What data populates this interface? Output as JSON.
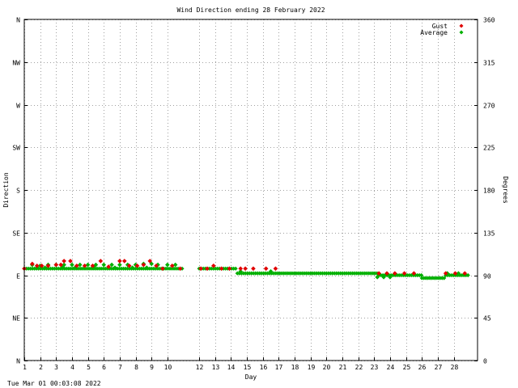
{
  "chart_data": {
    "type": "scatter",
    "title": "Wind Direction ending 28 February 2022",
    "xlabel": "Day",
    "ylabel_left": "Direction",
    "ylabel_right": "Degrees",
    "footer": "Tue Mar 01 00:03:08 2022",
    "x_ticks": [
      "1",
      "2",
      "3",
      "4",
      "5",
      "6",
      "7",
      "8",
      "9",
      "10",
      "12",
      "13",
      "14",
      "15",
      "16",
      "17",
      "18",
      "19",
      "20",
      "21",
      "22",
      "23",
      "24",
      "25",
      "26",
      "27",
      "28"
    ],
    "y_ticks_left": [
      "N",
      "NE",
      "E",
      "SE",
      "S",
      "SW",
      "W",
      "NW",
      "N"
    ],
    "y_ticks_right": [
      "0",
      "45",
      "90",
      "135",
      "180",
      "225",
      "270",
      "315",
      "360"
    ],
    "xlim": [
      1,
      29.5
    ],
    "ylim": [
      0,
      360
    ],
    "grid": true,
    "legend_position": "top-right",
    "series": [
      {
        "name": "Gust",
        "color": "#e00000",
        "points": [
          [
            1.0,
            97
          ],
          [
            1.5,
            102
          ],
          [
            1.8,
            100
          ],
          [
            2.1,
            100
          ],
          [
            2.5,
            100
          ],
          [
            3.0,
            101
          ],
          [
            3.3,
            101
          ],
          [
            3.5,
            105
          ],
          [
            3.9,
            105
          ],
          [
            4.3,
            100
          ],
          [
            4.8,
            100
          ],
          [
            5.3,
            100
          ],
          [
            5.8,
            105
          ],
          [
            6.3,
            99
          ],
          [
            7.0,
            105
          ],
          [
            7.3,
            105
          ],
          [
            7.6,
            100
          ],
          [
            8.1,
            100
          ],
          [
            8.5,
            101
          ],
          [
            8.9,
            105
          ],
          [
            9.3,
            100
          ],
          [
            9.7,
            97
          ],
          [
            10.3,
            100
          ],
          [
            10.8,
            97
          ],
          [
            12.1,
            97
          ],
          [
            12.5,
            97
          ],
          [
            12.9,
            100
          ],
          [
            13.4,
            97
          ],
          [
            13.9,
            97
          ],
          [
            14.6,
            97
          ],
          [
            14.9,
            97
          ],
          [
            15.4,
            97
          ],
          [
            16.2,
            97
          ],
          [
            16.8,
            97
          ],
          [
            23.3,
            92
          ],
          [
            23.8,
            92
          ],
          [
            24.3,
            92
          ],
          [
            24.9,
            92
          ],
          [
            25.5,
            92
          ],
          [
            27.5,
            92
          ],
          [
            28.1,
            92
          ],
          [
            28.7,
            92
          ]
        ]
      },
      {
        "name": "Average",
        "color": "#00b000",
        "segments": [
          {
            "x_start": 1.0,
            "x_end": 11.0,
            "y": 97
          },
          {
            "x_start": 12.0,
            "x_end": 14.4,
            "y": 97
          },
          {
            "x_start": 14.4,
            "x_end": 23.3,
            "y": 92
          },
          {
            "x_start": 23.3,
            "x_end": 26.0,
            "y": 90
          },
          {
            "x_start": 26.0,
            "x_end": 27.5,
            "y": 87
          },
          {
            "x_start": 27.5,
            "x_end": 29.0,
            "y": 90
          }
        ],
        "points": [
          [
            1.5,
            101
          ],
          [
            2.0,
            100
          ],
          [
            2.5,
            101
          ],
          [
            3.0,
            101
          ],
          [
            3.5,
            101
          ],
          [
            4.0,
            101
          ],
          [
            4.5,
            101
          ],
          [
            5.0,
            101
          ],
          [
            5.5,
            101
          ],
          [
            6.0,
            101
          ],
          [
            6.5,
            101
          ],
          [
            7.0,
            101
          ],
          [
            7.5,
            101
          ],
          [
            8.0,
            101
          ],
          [
            8.5,
            102
          ],
          [
            9.0,
            102
          ],
          [
            9.4,
            101
          ],
          [
            10.0,
            101
          ],
          [
            10.5,
            101
          ],
          [
            1.8,
            98
          ],
          [
            2.3,
            98
          ],
          [
            3.4,
            98
          ],
          [
            4.2,
            98
          ],
          [
            5.4,
            98
          ],
          [
            6.7,
            98
          ],
          [
            7.8,
            98
          ],
          [
            8.7,
            98
          ],
          [
            14.6,
            94
          ],
          [
            16.5,
            94
          ],
          [
            23.2,
            88
          ],
          [
            23.6,
            88
          ],
          [
            24.0,
            88
          ],
          [
            27.6,
            92
          ],
          [
            28.3,
            92
          ]
        ]
      }
    ]
  }
}
